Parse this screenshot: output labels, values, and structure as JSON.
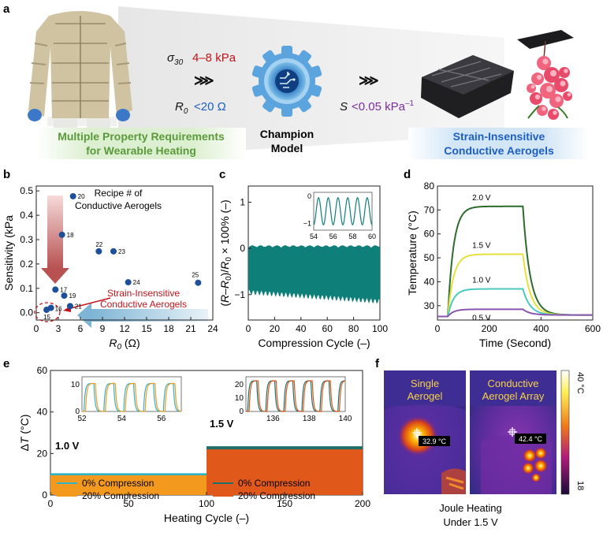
{
  "panel_a": {
    "label": "a",
    "req_sigma_sym": "σ",
    "req_sigma_sub": "30",
    "req_sigma_val": "4–8 kPa",
    "req_r0_sym": "R",
    "req_r0_sub": "0",
    "req_r0_val": "<20 Ω",
    "req_s_sym": "S",
    "req_s_val": "<0.05 kPa",
    "req_s_sup": "–1",
    "arrows": "⋙",
    "green_box_line1": "Multiple Property Requirements",
    "green_box_line2": "for Wearable Heating",
    "champion_line1": "Champion",
    "champion_line2": "Model",
    "blue_box_line1": "Strain-Insensitive",
    "blue_box_line2": "Conductive Aerogels",
    "colors": {
      "red": "#c0141b",
      "blue": "#1e5fc0",
      "purple": "#7a2ea0",
      "green": "#5a9a3a",
      "gear": "#5ba4de"
    }
  },
  "panel_b": {
    "label": "b",
    "legend_line1": "Recipe # of",
    "legend_line2": "Conductive Aerogels",
    "annotation_line1": "Strain-Insensitive",
    "annotation_line2": "Conductive Aerogels"
  },
  "panel_c": {
    "label": "c"
  },
  "panel_d": {
    "label": "d"
  },
  "panel_e": {
    "label": "e",
    "label_10": "1.0 V",
    "label_15": "1.5 V"
  },
  "panel_f": {
    "label": "f",
    "left_title_1": "Single",
    "left_title_2": "Aerogel",
    "left_reading": "32.9 °C",
    "right_title_1": "Conductive",
    "right_title_2": "Aerogel Array",
    "right_reading": "42.4 °C",
    "scale_max": "40 °C",
    "scale_min": "18",
    "caption_1": "Joule Heating",
    "caption_2": "Under 1.5 V"
  },
  "chart_data": [
    {
      "id": "b",
      "type": "scatter",
      "xlabel": "R0 (Ω)",
      "ylabel": "Sensitivity (kPa⁻¹)",
      "xlim": [
        0,
        24
      ],
      "ylim": [
        -0.03,
        0.52
      ],
      "xticks": [
        0,
        3,
        6,
        9,
        12,
        15,
        18,
        21,
        24
      ],
      "yticks": [
        0.0,
        0.1,
        0.2,
        0.3,
        0.4,
        0.5
      ],
      "points": [
        {
          "label": "20",
          "x": 5.0,
          "y": 0.478
        },
        {
          "label": "18",
          "x": 3.5,
          "y": 0.32
        },
        {
          "label": "22",
          "x": 8.5,
          "y": 0.252
        },
        {
          "label": "23",
          "x": 10.5,
          "y": 0.252
        },
        {
          "label": "24",
          "x": 12.5,
          "y": 0.125
        },
        {
          "label": "25",
          "x": 22.0,
          "y": 0.123
        },
        {
          "label": "17",
          "x": 2.6,
          "y": 0.095
        },
        {
          "label": "19",
          "x": 3.8,
          "y": 0.07
        },
        {
          "label": "21",
          "x": 4.6,
          "y": 0.027
        },
        {
          "label": "16",
          "x": 2.0,
          "y": 0.02
        },
        {
          "label": "15",
          "x": 1.4,
          "y": 0.012
        }
      ]
    },
    {
      "id": "c",
      "type": "line",
      "xlabel": "Compression Cycle (–)",
      "ylabel": "(R–R0)/R0 × 100% (–)",
      "xlim": [
        0,
        100
      ],
      "ylim": [
        -1.55,
        1.35
      ],
      "xticks": [
        0,
        20,
        40,
        60,
        80,
        100
      ],
      "yticks": [
        -1,
        0,
        1
      ],
      "band_top": 0.0,
      "band_bottom_start": -0.95,
      "band_bottom_end": -1.15,
      "inset": {
        "xlim": [
          54,
          60
        ],
        "ylim": [
          -1.25,
          0.15
        ],
        "xticks": [
          54,
          56,
          58,
          60
        ],
        "yticks": [
          -1,
          0
        ],
        "period": 1.0
      }
    },
    {
      "id": "d",
      "type": "line",
      "xlabel": "Time (Second)",
      "ylabel": "Temperature (°C)",
      "xlim": [
        0,
        600
      ],
      "ylim": [
        24,
        80
      ],
      "xticks": [
        0,
        200,
        400,
        600
      ],
      "yticks": [
        30,
        40,
        50,
        60,
        70,
        80
      ],
      "on_time": 40,
      "off_time": 330,
      "series": [
        {
          "name": "2.0 V",
          "steady": 71.5,
          "color": "#2c6b2c"
        },
        {
          "name": "1.5 V",
          "steady": 51.5,
          "color": "#e6e03a"
        },
        {
          "name": "1.0 V",
          "steady": 37.0,
          "color": "#4cc8c0"
        },
        {
          "name": "0.5 V",
          "steady": 28.5,
          "color": "#8a55b0"
        }
      ],
      "base": 25.5
    },
    {
      "id": "e",
      "type": "area",
      "xlabel": "Heating Cycle (–)",
      "ylabel": "ΔT (°C)",
      "xlim": [
        0,
        200
      ],
      "ylim": [
        0,
        60
      ],
      "xticks": [
        0,
        50,
        100,
        150,
        200
      ],
      "yticks": [
        0,
        20,
        40,
        60
      ],
      "series": [
        {
          "name": "0% Compression",
          "range": [
            0,
            100
          ],
          "value": 10.5,
          "color": "#2fb3c6"
        },
        {
          "name": "20% Compression",
          "range": [
            0,
            100
          ],
          "value": 9.5,
          "color": "#f39a1e"
        },
        {
          "name": "0% Compression",
          "range": [
            100,
            200
          ],
          "value": 23.5,
          "color": "#1e6f6a"
        },
        {
          "name": "20% Compression",
          "range": [
            100,
            200
          ],
          "value": 22.0,
          "color": "#e0581a"
        }
      ],
      "inset_1": {
        "xlim": [
          52,
          57
        ],
        "ylim": [
          0,
          13
        ],
        "xticks": [
          52,
          54,
          56
        ],
        "yticks": [
          0,
          10
        ]
      },
      "inset_2": {
        "xlim": [
          134.5,
          140
        ],
        "ylim": [
          0,
          26
        ],
        "xticks": [
          136,
          138,
          140
        ],
        "yticks": [
          0,
          10,
          20
        ]
      }
    }
  ]
}
